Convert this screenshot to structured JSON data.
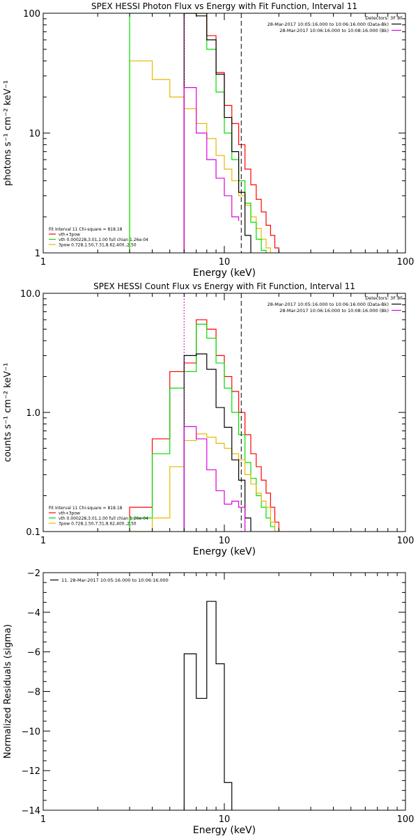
{
  "colors": {
    "red": "#ff0000",
    "green": "#00dd00",
    "yellow": "#e6b800",
    "magenta": "#dd00dd",
    "black": "#000000"
  },
  "chart_data": [
    {
      "type": "line",
      "title": "SPEX HESSI Photon Flux vs Energy with Fit Function, Interval 11",
      "xlabel": "Energy (keV)",
      "ylabel": "photons s⁻¹ cm⁻² keV⁻¹",
      "xscale": "log",
      "yscale": "log",
      "xlim": [
        1,
        100
      ],
      "ylim": [
        1,
        100
      ],
      "xticks": [
        1,
        10,
        100
      ],
      "xtick_labels": [
        "1",
        "10",
        "100"
      ],
      "yticks": [
        1,
        10,
        100
      ],
      "ytick_labels": [
        "1",
        "10",
        "100"
      ],
      "detectors_text": "Detectors: 3F 8F",
      "legend_top": [
        {
          "text": "28-Mar-2017 10:05:16.000 to 10:06:16.000 (Data-Bk)",
          "color": "black"
        },
        {
          "text": "28-Mar-2017 10:06:16.000 to 10:08:16.000 (Bk)",
          "color": "magenta"
        }
      ],
      "legend_bottom": [
        {
          "text": "Fit Interval 11   Chi-square = 818.18",
          "color": "black",
          "line": false
        },
        {
          "text": "vth+3pow",
          "color": "red",
          "line": true
        },
        {
          "text": "vth 0.000228,3.01,1.00  full chian 1.26e-04",
          "color": "green",
          "line": true
        },
        {
          "text": "3pow 0.728,1.50,7.31,8.62,400.,2.50",
          "color": "yellow",
          "line": true
        }
      ],
      "vlines": [
        {
          "x": 6,
          "style": "dotted",
          "color": "magenta"
        },
        {
          "x": 12.4,
          "style": "dashed",
          "color": "black"
        }
      ],
      "series": [
        {
          "color": "yellow",
          "edges": [
            3,
            4,
            5,
            6,
            7,
            8,
            9,
            10,
            11,
            12,
            13,
            14,
            15,
            16,
            17,
            18
          ],
          "values": [
            40,
            28,
            20,
            16,
            12,
            9,
            6.5,
            5,
            4,
            3,
            2.5,
            2,
            1.6,
            1.3,
            1.1
          ]
        },
        {
          "color": "green",
          "edges": [
            3,
            4,
            5,
            6,
            7,
            8,
            9,
            10,
            11,
            12,
            13,
            14,
            15,
            16,
            17
          ],
          "values": [
            100,
            100,
            100,
            100,
            100,
            50,
            22,
            10,
            6,
            4,
            2.6,
            1.8,
            1.3,
            1.05
          ]
        },
        {
          "color": "red",
          "edges": [
            6,
            7,
            8,
            9,
            10,
            11,
            12,
            13,
            14,
            15,
            16,
            17,
            18,
            19,
            20
          ],
          "values": [
            100,
            100,
            65,
            32,
            17,
            12,
            8,
            5,
            3.7,
            2.8,
            2.2,
            1.7,
            1.4,
            1.1
          ]
        },
        {
          "color": "black",
          "edges": [
            6,
            7,
            8,
            9,
            10,
            11,
            12,
            13,
            14
          ],
          "values": [
            100,
            95,
            60,
            31,
            13.5,
            7,
            3.2,
            1.4
          ]
        },
        {
          "color": "magenta",
          "edges": [
            6,
            7,
            8,
            9,
            10,
            11,
            12
          ],
          "values": [
            24,
            10,
            6,
            4.2,
            3,
            2,
            1.85
          ]
        }
      ]
    },
    {
      "type": "line",
      "title": "SPEX HESSI Count Flux vs Energy with Fit Function, Interval 11",
      "xlabel": "Energy (keV)",
      "ylabel": "counts s⁻¹ cm⁻² keV⁻¹",
      "xscale": "log",
      "yscale": "log",
      "xlim": [
        1,
        100
      ],
      "ylim": [
        0.1,
        10
      ],
      "xticks": [
        1,
        10,
        100
      ],
      "xtick_labels": [
        "1",
        "10",
        "100"
      ],
      "yticks": [
        0.1,
        1,
        10
      ],
      "ytick_labels": [
        "0.1",
        "1.0",
        "10.0"
      ],
      "detectors_text": "Detectors: 3F 8F",
      "legend_top": [
        {
          "text": "28-Mar-2017 10:05:16.000 to 10:06:16.000 (Data-Bk)",
          "color": "black"
        },
        {
          "text": "28-Mar-2017 10:06:16.000 to 10:08:16.000 (Bk)",
          "color": "magenta"
        }
      ],
      "legend_bottom": [
        {
          "text": "Fit Interval 11   Chi-square = 818.18",
          "color": "black",
          "line": false
        },
        {
          "text": "vth+3pow",
          "color": "red",
          "line": true
        },
        {
          "text": "vth 0.000228,3.01,1.00  full chian 1.26e-04",
          "color": "green",
          "line": true
        },
        {
          "text": "3pow 0.728,1.50,7.31,8.62,400.,2.50",
          "color": "yellow",
          "line": true
        }
      ],
      "vlines": [
        {
          "x": 6,
          "style": "dotted",
          "color": "black"
        },
        {
          "x": 6,
          "style": "dotted",
          "color": "magenta"
        },
        {
          "x": 12.4,
          "style": "dashed",
          "color": "black"
        }
      ],
      "series": [
        {
          "color": "red",
          "edges": [
            3,
            4,
            5,
            6,
            7,
            8,
            9,
            10,
            11,
            12,
            13,
            14,
            15,
            16,
            17,
            18,
            19,
            20
          ],
          "values": [
            0.16,
            0.6,
            2.2,
            2.6,
            6,
            5,
            3,
            2,
            1.5,
            1,
            0.65,
            0.45,
            0.35,
            0.27,
            0.21,
            0.16,
            0.12
          ]
        },
        {
          "color": "green",
          "edges": [
            3,
            4,
            5,
            6,
            7,
            8,
            9,
            10,
            11,
            12,
            13,
            14,
            15,
            16,
            17,
            18,
            19
          ],
          "values": [
            0.13,
            0.45,
            1.6,
            2.2,
            5.5,
            4.2,
            2.6,
            1.6,
            1,
            0.65,
            0.38,
            0.28,
            0.2,
            0.16,
            0.13,
            0.11
          ]
        },
        {
          "color": "yellow",
          "edges": [
            3,
            4,
            5,
            6,
            7,
            8,
            9,
            10,
            11,
            12,
            13,
            14,
            15,
            16,
            17,
            18,
            19
          ],
          "values": [
            0.1,
            0.13,
            0.35,
            0.58,
            0.66,
            0.62,
            0.55,
            0.5,
            0.45,
            0.4,
            0.3,
            0.25,
            0.21,
            0.18,
            0.16,
            0.12
          ]
        },
        {
          "color": "black",
          "edges": [
            6,
            7,
            8,
            9,
            10,
            11,
            12,
            13,
            14
          ],
          "values": [
            3,
            3.1,
            2.3,
            1.1,
            0.75,
            0.4,
            0.27,
            0.13
          ]
        },
        {
          "color": "magenta",
          "edges": [
            6,
            7,
            8,
            9,
            10,
            11,
            12,
            13
          ],
          "values": [
            0.76,
            0.6,
            0.33,
            0.22,
            0.17,
            0.18,
            0.16
          ]
        }
      ]
    },
    {
      "type": "line",
      "title": "",
      "xlabel": "Energy (keV)",
      "ylabel": "Normalized Residuals (sigma)",
      "xscale": "log",
      "yscale": "linear",
      "xlim": [
        1,
        100
      ],
      "ylim": [
        -14,
        -2
      ],
      "xticks": [
        1,
        10,
        100
      ],
      "xtick_labels": [
        "1",
        "10",
        "100"
      ],
      "yticks": [
        -14,
        -12,
        -10,
        -8,
        -6,
        -4,
        -2
      ],
      "ytick_labels": [
        "−14",
        "−12",
        "−10",
        "−8",
        "−6",
        "−4",
        "−2"
      ],
      "legend_top_left": [
        {
          "text": "11. 28-Mar-2017 10:05:16.000 to 10:06:16.000",
          "color": "black"
        }
      ],
      "series": [
        {
          "color": "black",
          "edges": [
            6,
            7,
            8,
            9,
            10,
            11
          ],
          "values": [
            -6.1,
            -8.35,
            -3.45,
            -6.6,
            -12.6
          ],
          "drop_to": -14
        }
      ]
    }
  ]
}
